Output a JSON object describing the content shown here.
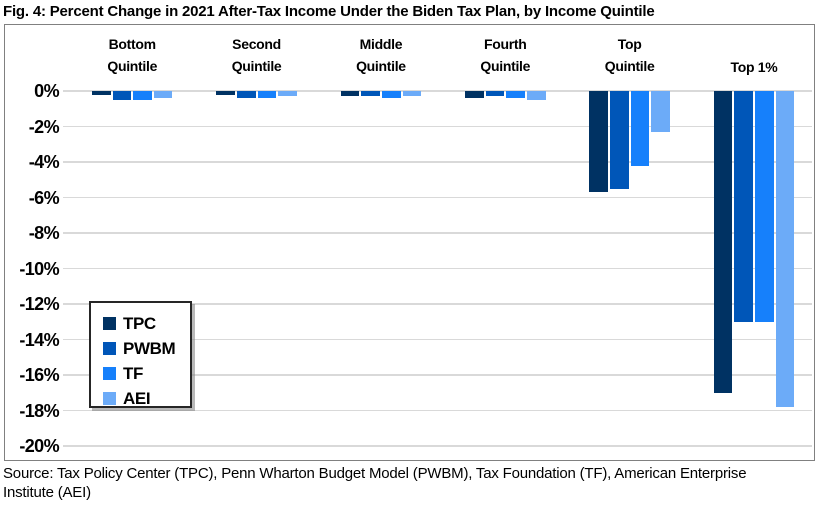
{
  "title": "Fig. 4: Percent Change in 2021 After-Tax Income Under the Biden Tax Plan, by Income Quintile",
  "chart_data": {
    "type": "bar",
    "orientation": "vertical",
    "categories": [
      "Bottom Quintile",
      "Second Quintile",
      "Middle Quintile",
      "Fourth Quintile",
      "Top Quintile",
      "Top 1%"
    ],
    "category_label_lines": [
      [
        "Bottom",
        "Quintile"
      ],
      [
        "Second",
        "Quintile"
      ],
      [
        "Middle",
        "Quintile"
      ],
      [
        "Fourth",
        "Quintile"
      ],
      [
        "Top",
        "Quintile"
      ],
      [
        "Top 1%"
      ]
    ],
    "series": [
      {
        "name": "TPC",
        "color": "#003263",
        "values": [
          -0.2,
          -0.2,
          -0.3,
          -0.4,
          -5.7,
          -17.0
        ]
      },
      {
        "name": "PWBM",
        "color": "#0056B8",
        "values": [
          -0.5,
          -0.4,
          -0.3,
          -0.3,
          -5.5,
          -13.0
        ]
      },
      {
        "name": "TF",
        "color": "#1680FB",
        "values": [
          -0.5,
          -0.4,
          -0.4,
          -0.4,
          -4.2,
          -13.0
        ]
      },
      {
        "name": "AEI",
        "color": "#6CABF8",
        "values": [
          -0.4,
          -0.3,
          -0.3,
          -0.5,
          -2.3,
          -17.8
        ]
      }
    ],
    "ylabel": "",
    "ylim": [
      -20,
      0
    ],
    "ytick_step": 2,
    "ytick_labels": [
      "0%",
      "-2%",
      "-4%",
      "-6%",
      "-8%",
      "-10%",
      "-12%",
      "-14%",
      "-16%",
      "-18%",
      "-20%"
    ],
    "grid": true,
    "gridline_color": "#D9D9D9",
    "legend_position": "middle-left",
    "legend_entries": [
      "TPC",
      "PWBM",
      "TF",
      "AEI"
    ]
  },
  "source": {
    "line1": "Source: Tax Policy Center (TPC), Penn Wharton Budget Model (PWBM), Tax Foundation (TF), American Enterprise",
    "line2": "Institute (AEI)"
  }
}
